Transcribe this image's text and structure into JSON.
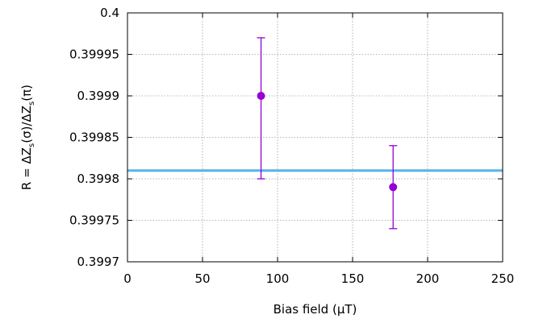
{
  "chart_data": {
    "type": "scatter",
    "xlabel": "Bias field (μT)",
    "ylabel_parts": {
      "prefix": "R = ΔZ",
      "sub1": "s",
      "mid": "(σ)/ΔZ",
      "sub2": "s",
      "suffix": "(π)"
    },
    "xlim": [
      0,
      250
    ],
    "ylim": [
      0.3997,
      0.4
    ],
    "x_ticks": [
      0,
      50,
      100,
      150,
      200,
      250
    ],
    "x_tick_labels": [
      "0",
      "50",
      "100",
      "150",
      "200",
      "250"
    ],
    "y_ticks": [
      0.3997,
      0.39975,
      0.3998,
      0.39985,
      0.3999,
      0.39995,
      0.4
    ],
    "y_tick_labels": [
      "0.3997",
      "0.39975",
      "0.3998",
      "0.39985",
      "0.3999",
      "0.39995",
      "0.4"
    ],
    "grid": true,
    "series": [
      {
        "points": [
          {
            "x": 89,
            "y": 0.3999,
            "yerr_low": 0.3998,
            "yerr_high": 0.39997
          },
          {
            "x": 177,
            "y": 0.39979,
            "yerr_low": 0.39974,
            "yerr_high": 0.39984
          }
        ]
      }
    ],
    "reference_line": {
      "y": 0.39981
    },
    "colors": {
      "points": "#9400d3",
      "reference_line": "#56b4e9",
      "axis": "#000000"
    }
  }
}
